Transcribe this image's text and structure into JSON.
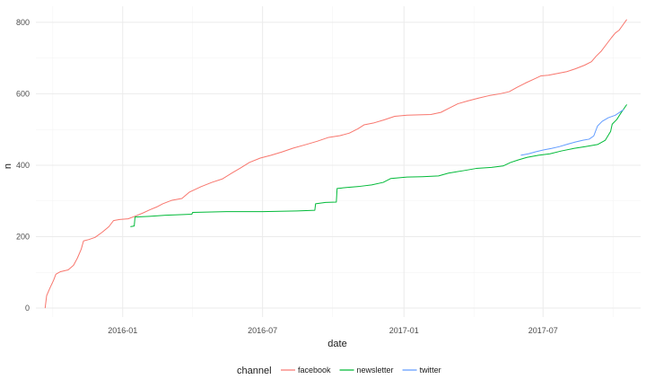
{
  "chart_data": {
    "type": "line",
    "title": "",
    "xlabel": "date",
    "ylabel": "n",
    "x_type": "date",
    "xlim": [
      "2015-09-10",
      "2017-11-05"
    ],
    "ylim": [
      -25,
      845
    ],
    "x_ticks": [
      "2016-01-01",
      "2016-07-01",
      "2017-01-01",
      "2017-07-01"
    ],
    "x_tick_labels": [
      "2016-01",
      "2016-07",
      "2017-01",
      "2017-07"
    ],
    "y_ticks": [
      0,
      200,
      400,
      600,
      800
    ],
    "grid": true,
    "legend": {
      "title": "channel",
      "position": "bottom"
    },
    "series": [
      {
        "name": "facebook",
        "color": "#F8766D",
        "points": [
          [
            "2015-09-22",
            0
          ],
          [
            "2015-09-24",
            35
          ],
          [
            "2015-09-28",
            55
          ],
          [
            "2015-10-03",
            78
          ],
          [
            "2015-10-06",
            95
          ],
          [
            "2015-10-12",
            102
          ],
          [
            "2015-10-22",
            107
          ],
          [
            "2015-10-29",
            120
          ],
          [
            "2015-11-03",
            140
          ],
          [
            "2015-11-08",
            165
          ],
          [
            "2015-11-11",
            188
          ],
          [
            "2015-11-18",
            192
          ],
          [
            "2015-11-26",
            198
          ],
          [
            "2015-12-05",
            212
          ],
          [
            "2015-12-14",
            228
          ],
          [
            "2015-12-20",
            245
          ],
          [
            "2015-12-28",
            248
          ],
          [
            "2016-01-08",
            250
          ],
          [
            "2016-01-18",
            258
          ],
          [
            "2016-01-28",
            267
          ],
          [
            "2016-02-05",
            275
          ],
          [
            "2016-02-14",
            283
          ],
          [
            "2016-02-22",
            292
          ],
          [
            "2016-03-05",
            302
          ],
          [
            "2016-03-18",
            307
          ],
          [
            "2016-03-28",
            325
          ],
          [
            "2016-04-12",
            340
          ],
          [
            "2016-04-26",
            352
          ],
          [
            "2016-05-10",
            362
          ],
          [
            "2016-05-22",
            378
          ],
          [
            "2016-06-02",
            392
          ],
          [
            "2016-06-14",
            408
          ],
          [
            "2016-06-28",
            420
          ],
          [
            "2016-07-12",
            428
          ],
          [
            "2016-07-26",
            437
          ],
          [
            "2016-08-10",
            448
          ],
          [
            "2016-08-25",
            457
          ],
          [
            "2016-09-10",
            467
          ],
          [
            "2016-09-25",
            478
          ],
          [
            "2016-10-10",
            483
          ],
          [
            "2016-10-22",
            490
          ],
          [
            "2016-11-02",
            502
          ],
          [
            "2016-11-10",
            513
          ],
          [
            "2016-11-22",
            518
          ],
          [
            "2016-12-06",
            527
          ],
          [
            "2016-12-20",
            537
          ],
          [
            "2017-01-05",
            540
          ],
          [
            "2017-01-20",
            541
          ],
          [
            "2017-02-05",
            542
          ],
          [
            "2017-02-18",
            548
          ],
          [
            "2017-03-01",
            560
          ],
          [
            "2017-03-12",
            572
          ],
          [
            "2017-03-25",
            580
          ],
          [
            "2017-04-08",
            588
          ],
          [
            "2017-04-22",
            595
          ],
          [
            "2017-05-06",
            600
          ],
          [
            "2017-05-18",
            606
          ],
          [
            "2017-05-28",
            618
          ],
          [
            "2017-06-08",
            630
          ],
          [
            "2017-06-18",
            640
          ],
          [
            "2017-06-28",
            650
          ],
          [
            "2017-07-08",
            652
          ],
          [
            "2017-07-20",
            657
          ],
          [
            "2017-08-01",
            662
          ],
          [
            "2017-08-12",
            670
          ],
          [
            "2017-08-24",
            680
          ],
          [
            "2017-09-02",
            690
          ],
          [
            "2017-09-08",
            705
          ],
          [
            "2017-09-15",
            720
          ],
          [
            "2017-09-22",
            740
          ],
          [
            "2017-09-28",
            757
          ],
          [
            "2017-10-03",
            770
          ],
          [
            "2017-10-08",
            778
          ],
          [
            "2017-10-12",
            790
          ],
          [
            "2017-10-18",
            808
          ]
        ]
      },
      {
        "name": "newsletter",
        "color": "#00BA38",
        "points": [
          [
            "2016-01-11",
            228
          ],
          [
            "2016-01-16",
            230
          ],
          [
            "2016-01-17",
            255
          ],
          [
            "2016-02-05",
            257
          ],
          [
            "2016-02-26",
            260
          ],
          [
            "2016-03-20",
            262
          ],
          [
            "2016-03-31",
            263
          ],
          [
            "2016-04-01",
            268
          ],
          [
            "2016-05-15",
            270
          ],
          [
            "2016-07-01",
            270
          ],
          [
            "2016-08-15",
            272
          ],
          [
            "2016-09-07",
            274
          ],
          [
            "2016-09-08",
            292
          ],
          [
            "2016-09-21",
            296
          ],
          [
            "2016-10-05",
            297
          ],
          [
            "2016-10-06",
            335
          ],
          [
            "2016-10-20",
            338
          ],
          [
            "2016-11-05",
            341
          ],
          [
            "2016-11-20",
            345
          ],
          [
            "2016-12-05",
            352
          ],
          [
            "2016-12-15",
            363
          ],
          [
            "2017-01-05",
            367
          ],
          [
            "2017-01-25",
            368
          ],
          [
            "2017-02-15",
            370
          ],
          [
            "2017-02-28",
            378
          ],
          [
            "2017-03-20",
            385
          ],
          [
            "2017-04-05",
            391
          ],
          [
            "2017-04-25",
            394
          ],
          [
            "2017-05-10",
            398
          ],
          [
            "2017-05-20",
            408
          ],
          [
            "2017-05-30",
            415
          ],
          [
            "2017-06-10",
            422
          ],
          [
            "2017-06-25",
            428
          ],
          [
            "2017-07-10",
            432
          ],
          [
            "2017-07-25",
            440
          ],
          [
            "2017-08-10",
            447
          ],
          [
            "2017-08-25",
            452
          ],
          [
            "2017-09-10",
            458
          ],
          [
            "2017-09-20",
            470
          ],
          [
            "2017-09-27",
            495
          ],
          [
            "2017-09-29",
            515
          ],
          [
            "2017-10-05",
            528
          ],
          [
            "2017-10-10",
            545
          ],
          [
            "2017-10-18",
            570
          ]
        ]
      },
      {
        "name": "twitter",
        "color": "#619CFF",
        "points": [
          [
            "2017-06-02",
            428
          ],
          [
            "2017-06-12",
            432
          ],
          [
            "2017-06-22",
            438
          ],
          [
            "2017-07-02",
            443
          ],
          [
            "2017-07-12",
            447
          ],
          [
            "2017-07-22",
            452
          ],
          [
            "2017-08-02",
            459
          ],
          [
            "2017-08-12",
            465
          ],
          [
            "2017-08-22",
            470
          ],
          [
            "2017-08-30",
            473
          ],
          [
            "2017-09-05",
            482
          ],
          [
            "2017-09-10",
            510
          ],
          [
            "2017-09-16",
            523
          ],
          [
            "2017-09-24",
            533
          ],
          [
            "2017-10-03",
            540
          ],
          [
            "2017-10-10",
            550
          ],
          [
            "2017-10-14",
            556
          ]
        ]
      }
    ]
  }
}
